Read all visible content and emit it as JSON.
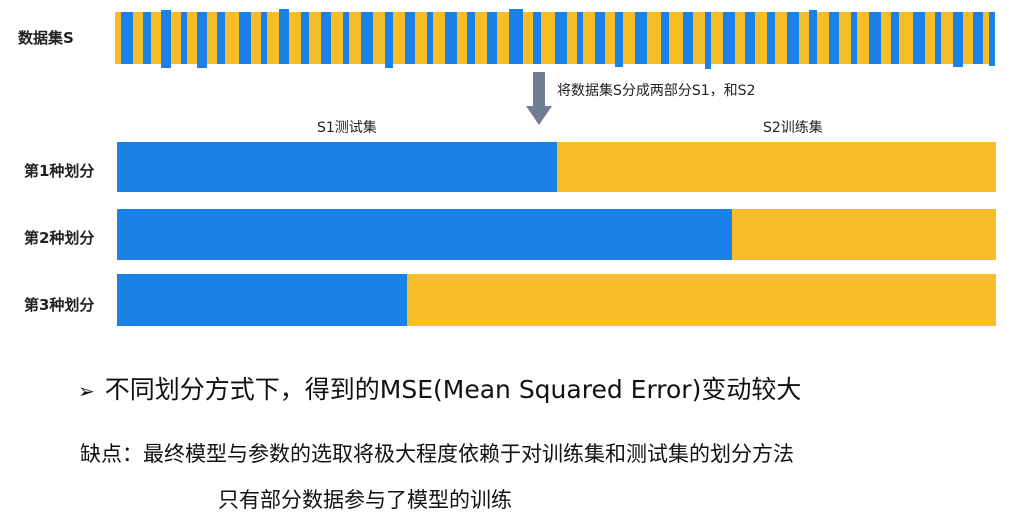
{
  "dataset_label": "数据集S",
  "split_note": "将数据集S分成两部分S1，和S2",
  "s1_label": "S1测试集",
  "s2_label": "S2训练集",
  "splits": [
    {
      "label": "第1种划分",
      "s1_fraction": 0.5
    },
    {
      "label": "第2种划分",
      "s1_fraction": 0.7
    },
    {
      "label": "第3种划分",
      "s1_fraction": 0.33
    }
  ],
  "colors": {
    "s1": "#1a81e8",
    "s2": "#f6bd26",
    "arrow": "#6f7e93"
  },
  "bullet_symbol": "➢",
  "bullet_text": "不同划分方式下，得到的MSE(Mean Squared Error)变动较大",
  "drawback_line1": "缺点：最终模型与参数的选取将极大程度依赖于对训练集和测试集的划分方法",
  "drawback_line2": "只有部分数据参与了模型的训练"
}
